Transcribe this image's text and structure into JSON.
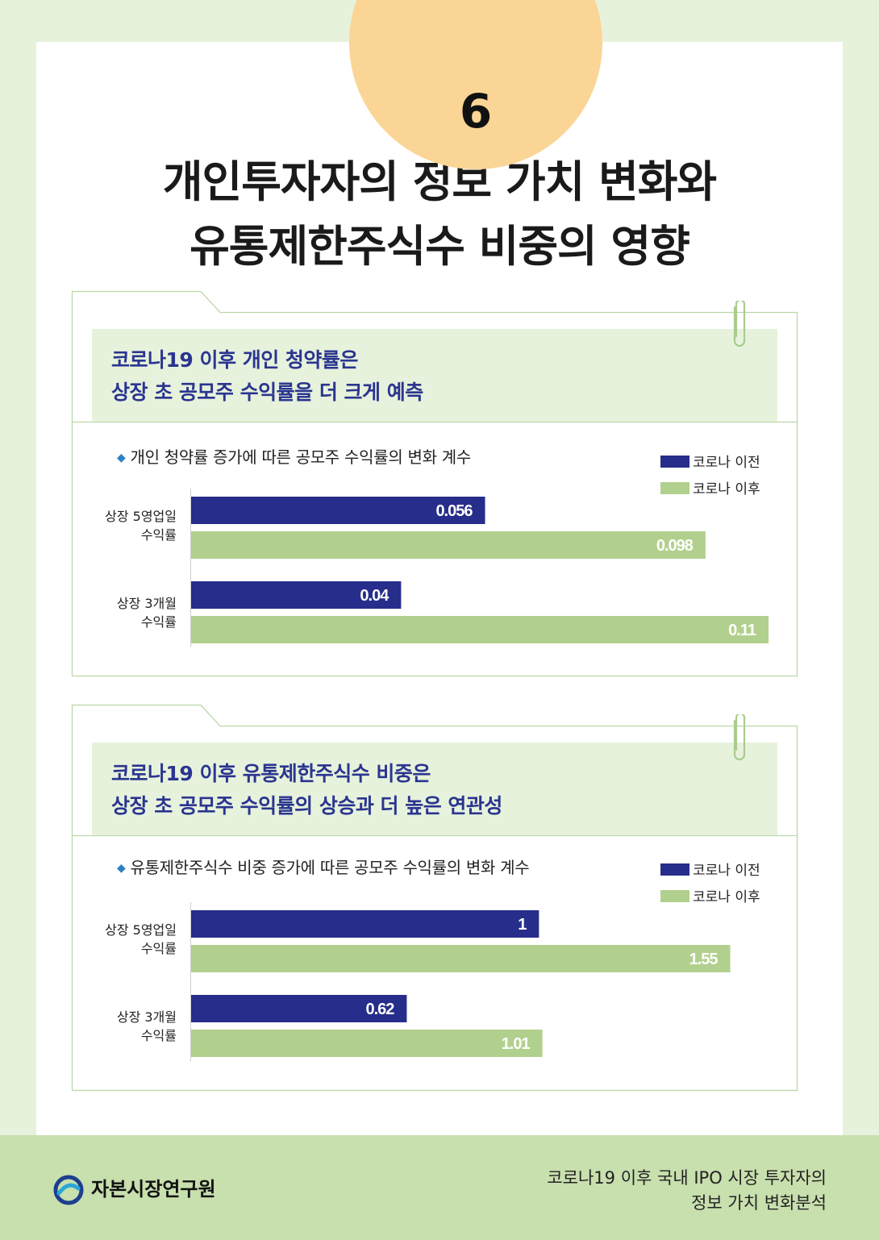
{
  "badge": {
    "number": "6"
  },
  "title": {
    "line1": "개인투자자의 정보 가치 변화와",
    "line2": "유통제한주식수 비중의 영향"
  },
  "colors": {
    "before": "#262d8a",
    "after": "#b2d08d",
    "accent_bg": "#e7f2dc",
    "heading_text": "#2a3590"
  },
  "panels": [
    {
      "heading_line1": "코로나19 이후 개인 청약률은",
      "heading_line2": "상장 초 공모주 수익률을 더 크게 예측",
      "subtitle": "개인 청약률 증가에 따른 공모주 수익률의 변화 계수",
      "legend": [
        "코로나 이전",
        "코로나 이후"
      ],
      "categories": [
        {
          "line1": "상장 5영업일",
          "line2": "수익률"
        },
        {
          "line1": "상장 3개월",
          "line2": "수익률"
        }
      ]
    },
    {
      "heading_line1": "코로나19 이후 유통제한주식수 비중은",
      "heading_line2": "상장 초 공모주 수익률의 상승과 더 높은 연관성",
      "subtitle": "유통제한주식수 비중 증가에 따른 공모주 수익률의 변화 계수",
      "legend": [
        "코로나 이전",
        "코로나 이후"
      ],
      "categories": [
        {
          "line1": "상장 5영업일",
          "line2": "수익률"
        },
        {
          "line1": "상장 3개월",
          "line2": "수익률"
        }
      ]
    }
  ],
  "chart_data": [
    {
      "type": "bar",
      "orientation": "horizontal",
      "title": "개인 청약률 증가에 따른 공모주 수익률의 변화 계수",
      "categories": [
        "상장 5영업일 수익률",
        "상장 3개월 수익률"
      ],
      "series": [
        {
          "name": "코로나 이전",
          "values": [
            0.056,
            0.04
          ],
          "labels": [
            "0.056",
            "0.04"
          ]
        },
        {
          "name": "코로나 이후",
          "values": [
            0.098,
            0.11
          ],
          "labels": [
            "0.098",
            "0.11"
          ]
        }
      ],
      "xlim": [
        0,
        0.11
      ],
      "legend": "top-right",
      "grid": false
    },
    {
      "type": "bar",
      "orientation": "horizontal",
      "title": "유통제한주식수 비중 증가에 따른 공모주 수익률의 변화 계수",
      "categories": [
        "상장 5영업일 수익률",
        "상장 3개월 수익률"
      ],
      "series": [
        {
          "name": "코로나 이전",
          "values": [
            1,
            0.62
          ],
          "labels": [
            "1",
            "0.62"
          ]
        },
        {
          "name": "코로나 이후",
          "values": [
            1.55,
            1.01
          ],
          "labels": [
            "1.55",
            "1.01"
          ]
        }
      ],
      "xlim": [
        0,
        1.66
      ],
      "legend": "top-right",
      "grid": false
    }
  ],
  "footer": {
    "org": "자본시장연구원",
    "report_line1": "코로나19 이후 국내 IPO 시장 투자자의",
    "report_line2": "정보 가치 변화분석"
  }
}
